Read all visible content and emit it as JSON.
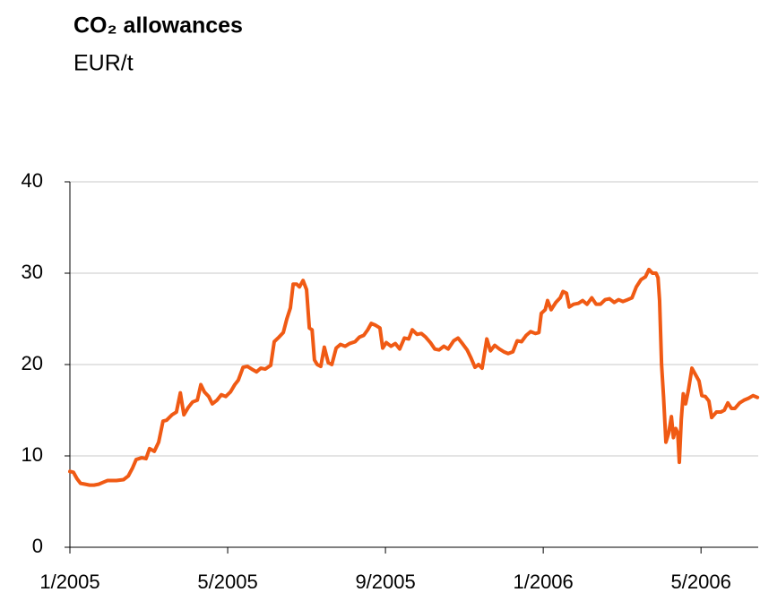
{
  "chart_data": {
    "type": "line",
    "title": "CO₂ allowances",
    "subtitle": "EUR/t",
    "color": "#f05a14",
    "x": [
      0,
      0.09,
      0.18,
      0.27,
      0.39,
      0.5,
      0.61,
      0.73,
      0.84,
      0.95,
      1.18,
      1.36,
      1.48,
      1.59,
      1.68,
      1.82,
      1.93,
      2.02,
      2.14,
      2.25,
      2.36,
      2.45,
      2.59,
      2.7,
      2.8,
      2.89,
      3.0,
      3.11,
      3.23,
      3.32,
      3.41,
      3.52,
      3.61,
      3.73,
      3.84,
      3.95,
      4.07,
      4.18,
      4.27,
      4.39,
      4.5,
      4.61,
      4.73,
      4.84,
      4.95,
      5.09,
      5.18,
      5.3,
      5.41,
      5.5,
      5.59,
      5.66,
      5.75,
      5.82,
      5.91,
      6.0,
      6.07,
      6.14,
      6.2,
      6.27,
      6.36,
      6.45,
      6.55,
      6.64,
      6.75,
      6.86,
      6.98,
      7.09,
      7.23,
      7.34,
      7.45,
      7.55,
      7.64,
      7.75,
      7.86,
      7.93,
      8.02,
      8.14,
      8.25,
      8.36,
      8.48,
      8.59,
      8.68,
      8.8,
      8.91,
      9.02,
      9.14,
      9.25,
      9.36,
      9.48,
      9.59,
      9.73,
      9.84,
      9.95,
      10.07,
      10.16,
      10.27,
      10.36,
      10.45,
      10.57,
      10.66,
      10.77,
      10.89,
      11.0,
      11.11,
      11.23,
      11.34,
      11.45,
      11.57,
      11.68,
      11.8,
      11.89,
      11.95,
      12.05,
      12.11,
      12.2,
      12.32,
      12.43,
      12.5,
      12.59,
      12.66,
      12.77,
      12.89,
      13.0,
      13.11,
      13.23,
      13.34,
      13.45,
      13.57,
      13.68,
      13.8,
      13.91,
      14.02,
      14.14,
      14.25,
      14.36,
      14.48,
      14.59,
      14.68,
      14.77,
      14.86,
      14.91,
      14.95,
      15.0,
      15.05,
      15.11,
      15.18,
      15.25,
      15.3,
      15.36,
      15.41,
      15.45,
      15.5,
      15.55,
      15.61,
      15.68,
      15.77,
      15.86,
      15.95,
      16.02,
      16.11,
      16.2,
      16.27,
      16.39,
      16.5,
      16.59,
      16.68,
      16.77,
      16.86,
      16.98,
      17.09,
      17.2,
      17.32,
      17.43
    ],
    "values": [
      8.3,
      8.2,
      7.5,
      7.0,
      6.9,
      6.8,
      6.8,
      6.9,
      7.1,
      7.3,
      7.3,
      7.4,
      7.8,
      8.7,
      9.6,
      9.8,
      9.7,
      10.8,
      10.5,
      11.5,
      13.8,
      13.9,
      14.5,
      14.8,
      16.9,
      14.5,
      15.3,
      15.9,
      16.1,
      17.8,
      17.0,
      16.5,
      15.7,
      16.1,
      16.7,
      16.5,
      17.0,
      17.8,
      18.3,
      19.7,
      19.8,
      19.5,
      19.2,
      19.6,
      19.5,
      19.9,
      22.5,
      23.0,
      23.5,
      25.0,
      26.2,
      28.8,
      28.8,
      28.5,
      29.2,
      28.2,
      24.0,
      23.8,
      20.5,
      20.0,
      19.8,
      21.9,
      20.2,
      20.0,
      21.8,
      22.2,
      22.0,
      22.3,
      22.5,
      23.0,
      23.2,
      23.8,
      24.5,
      24.3,
      24.0,
      21.8,
      22.4,
      22.0,
      22.3,
      21.7,
      22.9,
      22.8,
      23.8,
      23.3,
      23.4,
      23.0,
      22.4,
      21.7,
      21.6,
      22.0,
      21.7,
      22.6,
      22.9,
      22.3,
      21.6,
      20.8,
      19.7,
      20.0,
      19.6,
      22.8,
      21.5,
      22.1,
      21.7,
      21.4,
      21.2,
      21.4,
      22.6,
      22.5,
      23.2,
      23.6,
      23.4,
      23.5,
      25.6,
      26.0,
      27.0,
      26.0,
      26.8,
      27.3,
      28.0,
      27.8,
      26.3,
      26.6,
      26.7,
      27.0,
      26.6,
      27.3,
      26.6,
      26.6,
      27.1,
      27.2,
      26.8,
      27.1,
      26.9,
      27.1,
      27.3,
      28.5,
      29.3,
      29.6,
      30.4,
      30.0,
      30.0,
      29.5,
      27.0,
      20.0,
      16.5,
      11.5,
      12.5,
      14.3,
      12.0,
      13.0,
      12.5,
      9.3,
      14.0,
      16.8,
      15.7,
      17.2,
      19.6,
      18.9,
      18.2,
      16.6,
      16.5,
      16.0,
      14.2,
      14.8,
      14.8,
      15.0,
      15.8,
      15.2,
      15.2,
      15.8,
      16.1,
      16.3,
      16.6,
      16.4
    ],
    "xlim": [
      0,
      17.45
    ],
    "xticks": [
      {
        "value": 0,
        "label": "1/2005"
      },
      {
        "value": 4,
        "label": "5/2005"
      },
      {
        "value": 8,
        "label": "9/2005"
      },
      {
        "value": 12,
        "label": "1/2006"
      },
      {
        "value": 16,
        "label": "5/2006"
      }
    ],
    "ylim": [
      0,
      40
    ],
    "yticks": [
      0,
      10,
      20,
      30,
      40
    ],
    "grid": true
  }
}
